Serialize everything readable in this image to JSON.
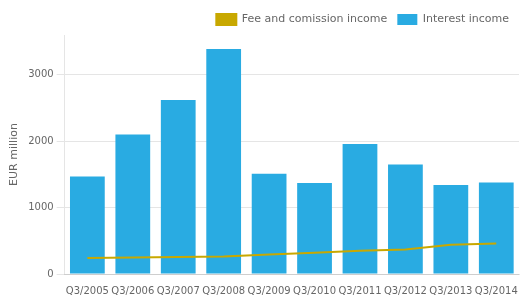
{
  "chart_data": {
    "type": "bar",
    "categories": [
      "Q3/2005",
      "Q3/2006",
      "Q3/2007",
      "Q3/2008",
      "Q3/2009",
      "Q3/2010",
      "Q3/2011",
      "Q3/2012",
      "Q3/2013",
      "Q3/2014"
    ],
    "series": [
      {
        "name": "Interest income",
        "type": "bar",
        "color": "#29ABE2",
        "values": [
          1470,
          2100,
          2620,
          3390,
          1510,
          1370,
          1960,
          1650,
          1340,
          1380
        ]
      },
      {
        "name": "Fee and comission income",
        "type": "line",
        "color": "#C8A800",
        "values": [
          240,
          250,
          255,
          265,
          295,
          320,
          350,
          370,
          440,
          460
        ]
      }
    ],
    "ylabel": "EUR million",
    "ylim": [
      0,
      3600
    ],
    "yticks": [
      0,
      1000,
      2000,
      3000
    ],
    "grid": true,
    "legend": "upper right"
  }
}
